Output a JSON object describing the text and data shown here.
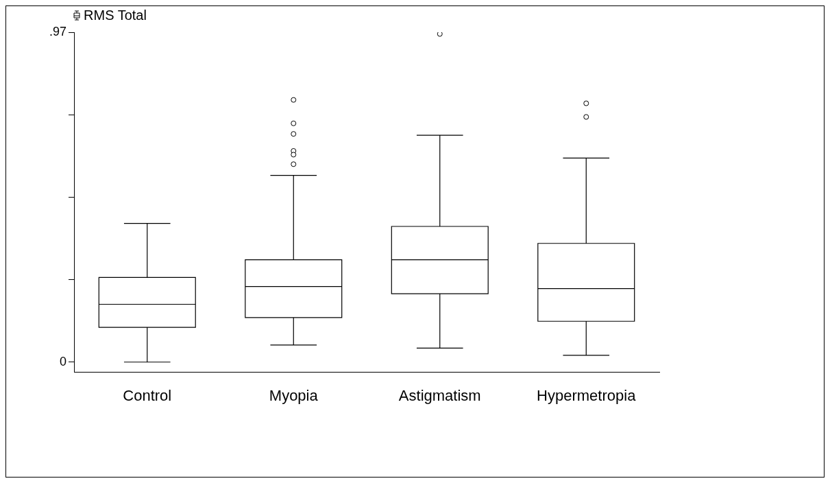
{
  "chart_data": {
    "type": "box",
    "categories": [
      "Control",
      "Myopia",
      "Astigmatism",
      "Hypermetropia"
    ],
    "series": [
      {
        "name": "RMS Total",
        "color": "#000000",
        "boxes": [
          {
            "low": 0,
            "q1": 0.102,
            "median": 0.17,
            "q3": 0.249,
            "high": 0.408
          },
          {
            "low": 0.05,
            "q1": 0.131,
            "median": 0.222,
            "q3": 0.301,
            "high": 0.549,
            "outliers": [
              0.771,
              0.702,
              0.671,
              0.621,
              0.61,
              0.582
            ]
          },
          {
            "low": 0.041,
            "q1": 0.201,
            "median": 0.301,
            "q3": 0.399,
            "high": 0.667,
            "outliers": [
              0.965
            ]
          },
          {
            "low": 0.02,
            "q1": 0.12,
            "median": 0.216,
            "q3": 0.349,
            "high": 0.6,
            "outliers": [
              0.761,
              0.721
            ]
          }
        ]
      }
    ],
    "ylim": [
      -0.03,
      0.97
    ],
    "yticks": [
      0,
      {
        "value": 0.2425,
        "label": null
      },
      {
        "value": 0.485,
        "label": null
      },
      {
        "value": 0.7275,
        "label": null
      },
      {
        "value": 0.97,
        "label": ".97"
      }
    ],
    "legend": "top left"
  }
}
